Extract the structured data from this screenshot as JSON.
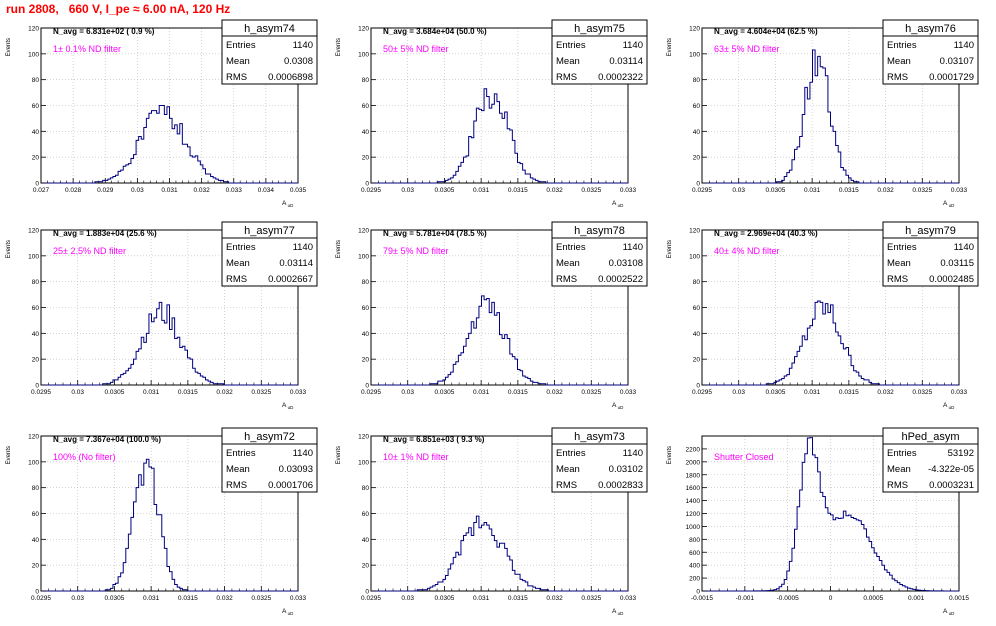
{
  "page": {
    "title": "run 2808,   660 V, I_pe ≈ 6.00 nA, 120 Hz"
  },
  "colors": {
    "title": "#ff0000",
    "histogram": "#000080",
    "annotation": "#ff00ff",
    "axis": "#000000",
    "grid": "#b8b8b8"
  },
  "stats_labels": {
    "entries": "Entries",
    "mean": "Mean",
    "rms": "RMS"
  },
  "chart_data": [
    {
      "type": "bar",
      "name": "h_asym74",
      "xlabel": "A_uD",
      "ylabel": "Events",
      "header": "N_avg = 6.831e+02 ( 0.9 %)",
      "annotation": "1± 0.1% ND filter",
      "stats": {
        "entries": "1140",
        "mean": "0.0308",
        "rms": "0.0006898"
      },
      "xlim": [
        0.027,
        0.035
      ],
      "ylim": [
        0,
        120
      ],
      "xticks": [
        0.027,
        0.028,
        0.029,
        0.03,
        0.031,
        0.032,
        0.033,
        0.034,
        0.035
      ],
      "xticklabels": [
        "0.027",
        "0.028",
        "0.029",
        "0.03",
        "0.031",
        "0.032",
        "0.033",
        "0.034",
        "0.035"
      ],
      "yticks": [
        0,
        20,
        40,
        60,
        80,
        100,
        120
      ],
      "dist": {
        "kind": "gauss",
        "mean": 0.0308,
        "sigma": 0.00069,
        "peak": 56,
        "seed": 74
      }
    },
    {
      "type": "bar",
      "name": "h_asym75",
      "xlabel": "A_uD",
      "ylabel": "Events",
      "header": "N_avg = 3.684e+04 (50.0 %)",
      "annotation": "50± 5% ND filter",
      "stats": {
        "entries": "1140",
        "mean": "0.03114",
        "rms": "0.0002322"
      },
      "xlim": [
        0.0295,
        0.033
      ],
      "ylim": [
        0,
        120
      ],
      "xticks": [
        0.0295,
        0.03,
        0.0305,
        0.031,
        0.0315,
        0.032,
        0.0325,
        0.033
      ],
      "xticklabels": [
        "0.0295",
        "0.03",
        "0.0305",
        "0.031",
        "0.0315",
        "0.032",
        "0.0325",
        "0.033"
      ],
      "yticks": [
        0,
        20,
        40,
        60,
        80,
        100,
        120
      ],
      "dist": {
        "kind": "gauss",
        "mean": 0.03114,
        "sigma": 0.000232,
        "peak": 68,
        "seed": 75
      }
    },
    {
      "type": "bar",
      "name": "h_asym76",
      "xlabel": "A_uD",
      "ylabel": "Events",
      "header": "N_avg = 4.604e+04 (62.5 %)",
      "annotation": "63± 5% ND filter",
      "stats": {
        "entries": "1140",
        "mean": "0.03107",
        "rms": "0.0001729"
      },
      "xlim": [
        0.0295,
        0.033
      ],
      "ylim": [
        0,
        120
      ],
      "xticks": [
        0.0295,
        0.03,
        0.0305,
        0.031,
        0.0315,
        0.032,
        0.0325,
        0.033
      ],
      "xticklabels": [
        "0.0295",
        "0.03",
        "0.0305",
        "0.031",
        "0.0315",
        "0.032",
        "0.0325",
        "0.033"
      ],
      "yticks": [
        0,
        20,
        40,
        60,
        80,
        100,
        120
      ],
      "dist": {
        "kind": "gauss",
        "mean": 0.03107,
        "sigma": 0.000173,
        "peak": 95,
        "seed": 76
      }
    },
    {
      "type": "bar",
      "name": "h_asym77",
      "xlabel": "A_uD",
      "ylabel": "Events",
      "header": "N_avg = 1.883e+04 (25.6 %)",
      "annotation": "25± 2.5% ND filter",
      "stats": {
        "entries": "1140",
        "mean": "0.03114",
        "rms": "0.0002667"
      },
      "xlim": [
        0.0295,
        0.033
      ],
      "ylim": [
        0,
        120
      ],
      "xticks": [
        0.0295,
        0.03,
        0.0305,
        0.031,
        0.0315,
        0.032,
        0.0325,
        0.033
      ],
      "xticklabels": [
        "0.0295",
        "0.03",
        "0.0305",
        "0.031",
        "0.0315",
        "0.032",
        "0.0325",
        "0.033"
      ],
      "yticks": [
        0,
        20,
        40,
        60,
        80,
        100,
        120
      ],
      "dist": {
        "kind": "gauss",
        "mean": 0.03114,
        "sigma": 0.000267,
        "peak": 56,
        "seed": 77
      }
    },
    {
      "type": "bar",
      "name": "h_asym78",
      "xlabel": "A_uD",
      "ylabel": "Events",
      "header": "N_avg = 5.781e+04 (78.5 %)",
      "annotation": "79± 5% ND filter",
      "stats": {
        "entries": "1140",
        "mean": "0.03108",
        "rms": "0.0002522"
      },
      "xlim": [
        0.0295,
        0.033
      ],
      "ylim": [
        0,
        120
      ],
      "xticks": [
        0.0295,
        0.03,
        0.0305,
        0.031,
        0.0315,
        0.032,
        0.0325,
        0.033
      ],
      "xticklabels": [
        "0.0295",
        "0.03",
        "0.0305",
        "0.031",
        "0.0315",
        "0.032",
        "0.0325",
        "0.033"
      ],
      "yticks": [
        0,
        20,
        40,
        60,
        80,
        100,
        120
      ],
      "dist": {
        "kind": "gauss",
        "mean": 0.03108,
        "sigma": 0.000252,
        "peak": 62,
        "seed": 78
      }
    },
    {
      "type": "bar",
      "name": "h_asym79",
      "xlabel": "A_uD",
      "ylabel": "Events",
      "header": "N_avg = 2.969e+04 (40.3 %)",
      "annotation": "40± 4% ND filter",
      "stats": {
        "entries": "1140",
        "mean": "0.03115",
        "rms": "0.0002485"
      },
      "xlim": [
        0.0295,
        0.033
      ],
      "ylim": [
        0,
        120
      ],
      "xticks": [
        0.0295,
        0.03,
        0.0305,
        0.031,
        0.0315,
        0.032,
        0.0325,
        0.033
      ],
      "xticklabels": [
        "0.0295",
        "0.03",
        "0.0305",
        "0.031",
        "0.0315",
        "0.032",
        "0.0325",
        "0.033"
      ],
      "yticks": [
        0,
        20,
        40,
        60,
        80,
        100,
        120
      ],
      "dist": {
        "kind": "gauss",
        "mean": 0.03115,
        "sigma": 0.000249,
        "peak": 60,
        "seed": 79
      }
    },
    {
      "type": "bar",
      "name": "h_asym72",
      "xlabel": "A_uD",
      "ylabel": "Events",
      "header": "N_avg = 7.367e+04 (100.0 %)",
      "annotation": "100% (No filter)",
      "stats": {
        "entries": "1140",
        "mean": "0.03093",
        "rms": "0.0001706"
      },
      "xlim": [
        0.0295,
        0.033
      ],
      "ylim": [
        0,
        120
      ],
      "xticks": [
        0.0295,
        0.03,
        0.0305,
        0.031,
        0.0315,
        0.032,
        0.0325,
        0.033
      ],
      "xticklabels": [
        "0.0295",
        "0.03",
        "0.0305",
        "0.031",
        "0.0315",
        "0.032",
        "0.0325",
        "0.033"
      ],
      "yticks": [
        0,
        20,
        40,
        60,
        80,
        100,
        120
      ],
      "dist": {
        "kind": "gauss",
        "mean": 0.03093,
        "sigma": 0.000171,
        "peak": 100,
        "seed": 72
      }
    },
    {
      "type": "bar",
      "name": "h_asym73",
      "xlabel": "A_uD",
      "ylabel": "Events",
      "header": "N_avg = 6.851e+03 ( 9.3 %)",
      "annotation": "10± 1% ND filter",
      "stats": {
        "entries": "1140",
        "mean": "0.03102",
        "rms": "0.0002833"
      },
      "xlim": [
        0.0295,
        0.033
      ],
      "ylim": [
        0,
        120
      ],
      "xticks": [
        0.0295,
        0.03,
        0.0305,
        0.031,
        0.0315,
        0.032,
        0.0325,
        0.033
      ],
      "xticklabels": [
        "0.0295",
        "0.03",
        "0.0305",
        "0.031",
        "0.0315",
        "0.032",
        "0.0325",
        "0.033"
      ],
      "yticks": [
        0,
        20,
        40,
        60,
        80,
        100,
        120
      ],
      "dist": {
        "kind": "gauss",
        "mean": 0.03102,
        "sigma": 0.000283,
        "peak": 55,
        "seed": 73
      }
    },
    {
      "type": "bar",
      "name": "hPed_asym",
      "xlabel": "A_uD",
      "ylabel": "Events",
      "header": "",
      "annotation": "Shutter Closed",
      "stats": {
        "entries": "53192",
        "mean": "-4.322e-05",
        "rms": "0.0003231"
      },
      "xlim": [
        -0.0015,
        0.0015
      ],
      "ylim": [
        0,
        2400
      ],
      "xticks": [
        -0.0015,
        -0.001,
        -0.0005,
        0,
        0.0005,
        0.001,
        0.0015
      ],
      "xticklabels": [
        "-0.0015",
        "-0.001",
        "-0.0005",
        "0",
        "0.0005",
        "0.001",
        "0.0015"
      ],
      "yticks": [
        0,
        200,
        400,
        600,
        800,
        1000,
        1200,
        1400,
        1600,
        1800,
        2000,
        2200
      ],
      "dist": {
        "kind": "double",
        "m1": -0.00025,
        "s1": 0.00012,
        "a1": 1950,
        "m2": 0.0002,
        "s2": 0.00028,
        "a2": 1200,
        "seed": 90
      }
    }
  ]
}
